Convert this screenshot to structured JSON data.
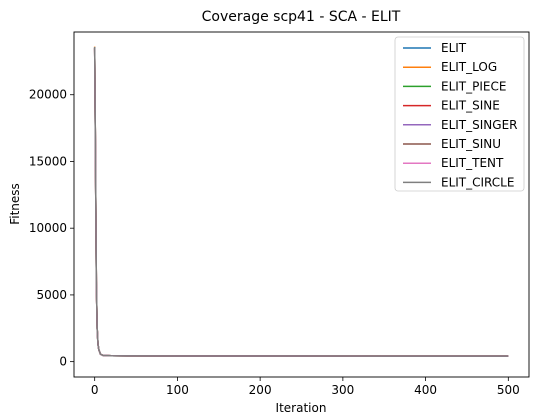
{
  "chart_data": {
    "type": "line",
    "title": "Coverage scp41 - SCA - ELIT",
    "xlabel": "Iteration",
    "ylabel": "Fitness",
    "xlim": [
      -25,
      525
    ],
    "ylim": [
      -1150,
      24700
    ],
    "xticks": [
      0,
      100,
      200,
      300,
      400,
      500
    ],
    "yticks": [
      0,
      5000,
      10000,
      15000,
      20000
    ],
    "grid": false,
    "legend_position": "top-right",
    "series": [
      {
        "name": "ELIT",
        "color": "#1f77b4",
        "x": [
          0,
          1,
          2,
          3,
          4,
          5,
          7,
          10,
          20,
          50,
          100,
          200,
          300,
          400,
          500
        ],
        "y": [
          23500,
          15000,
          6000,
          2500,
          1300,
          900,
          560,
          470,
          440,
          430,
          425,
          420,
          418,
          417,
          416
        ]
      },
      {
        "name": "ELIT_LOG",
        "color": "#ff7f0e",
        "x": [
          0,
          1,
          2,
          3,
          4,
          5,
          7,
          10,
          20,
          50,
          100,
          200,
          300,
          400,
          500
        ],
        "y": [
          23600,
          15200,
          6100,
          2550,
          1320,
          910,
          565,
          472,
          441,
          431,
          426,
          421,
          419,
          418,
          417
        ]
      },
      {
        "name": "ELIT_PIECE",
        "color": "#2ca02c",
        "x": [
          0,
          1,
          2,
          3,
          4,
          5,
          7,
          10,
          20,
          50,
          100,
          200,
          300,
          400,
          500
        ],
        "y": [
          23550,
          15100,
          6050,
          2520,
          1310,
          905,
          562,
          471,
          440,
          430,
          425,
          420,
          418,
          417,
          416
        ]
      },
      {
        "name": "ELIT_SINE",
        "color": "#d62728",
        "x": [
          0,
          1,
          2,
          3,
          4,
          5,
          7,
          10,
          20,
          50,
          100,
          200,
          300,
          400,
          500
        ],
        "y": [
          23450,
          14900,
          5950,
          2480,
          1290,
          895,
          558,
          469,
          439,
          429,
          424,
          419,
          417,
          416,
          415
        ]
      },
      {
        "name": "ELIT_SINGER",
        "color": "#9467bd",
        "x": [
          0,
          1,
          2,
          3,
          4,
          5,
          7,
          10,
          20,
          50,
          100,
          200,
          300,
          400,
          500
        ],
        "y": [
          23500,
          15050,
          6020,
          2510,
          1305,
          902,
          561,
          470,
          440,
          430,
          425,
          420,
          418,
          417,
          416
        ]
      },
      {
        "name": "ELIT_SINU",
        "color": "#8c564b",
        "x": [
          0,
          1,
          2,
          3,
          4,
          5,
          7,
          10,
          20,
          50,
          100,
          200,
          300,
          400,
          500
        ],
        "y": [
          23480,
          14950,
          5980,
          2490,
          1295,
          898,
          559,
          470,
          440,
          430,
          425,
          420,
          418,
          417,
          416
        ]
      },
      {
        "name": "ELIT_TENT",
        "color": "#e377c2",
        "x": [
          0,
          1,
          2,
          3,
          4,
          5,
          7,
          10,
          20,
          50,
          100,
          200,
          300,
          400,
          500
        ],
        "y": [
          23520,
          15080,
          6030,
          2515,
          1308,
          904,
          562,
          471,
          441,
          431,
          426,
          421,
          419,
          418,
          417
        ]
      },
      {
        "name": "ELIT_CIRCLE",
        "color": "#7f7f7f",
        "x": [
          0,
          1,
          2,
          3,
          4,
          5,
          7,
          10,
          20,
          50,
          100,
          200,
          300,
          400,
          500
        ],
        "y": [
          23580,
          15150,
          6080,
          2530,
          1315,
          908,
          564,
          472,
          441,
          431,
          426,
          421,
          419,
          418,
          417
        ]
      }
    ]
  }
}
